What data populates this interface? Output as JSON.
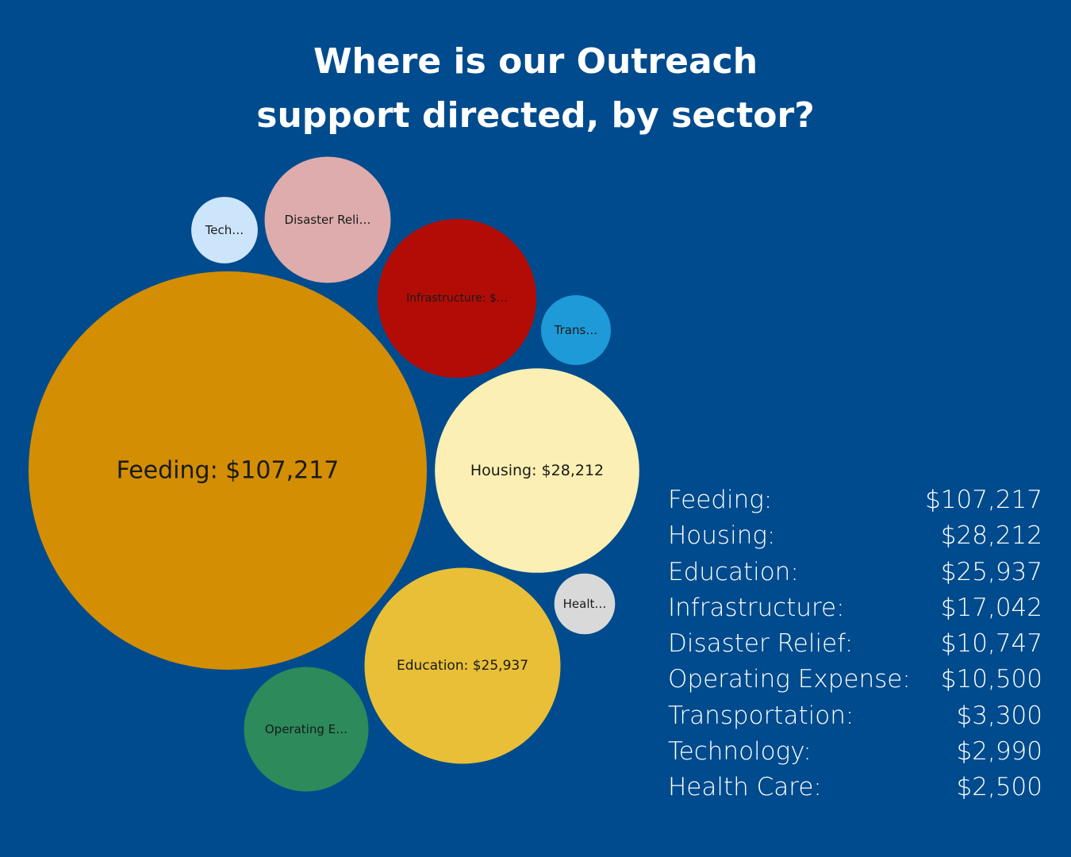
{
  "title": {
    "line1": "Where is our Outreach",
    "line2": "support directed, by sector?"
  },
  "chart_data": {
    "type": "bubble",
    "title": "Where is our Outreach support directed, by sector?",
    "series": [
      {
        "name": "Feeding",
        "value": 107217,
        "display": "$107,217",
        "label": "Feeding: $107,217",
        "color": "#d38e03"
      },
      {
        "name": "Housing",
        "value": 28212,
        "display": "$28,212",
        "label": "Housing: $28,212",
        "color": "#fbefb3"
      },
      {
        "name": "Education",
        "value": 25937,
        "display": "$25,937",
        "label": "Education: $25,937",
        "color": "#e8bf37"
      },
      {
        "name": "Infrastructure",
        "value": 17042,
        "display": "$17,042",
        "label": "Infrastructure: $…",
        "color": "#b30c06"
      },
      {
        "name": "Disaster Relief",
        "value": 10747,
        "display": "$10,747",
        "label": "Disaster Reli…",
        "color": "#deacac"
      },
      {
        "name": "Operating Expense",
        "value": 10500,
        "display": "$10,500",
        "label": "Operating E…",
        "color": "#2c8a5b"
      },
      {
        "name": "Transportation",
        "value": 3300,
        "display": "$3,300",
        "label": "Trans…",
        "color": "#1e9ad8"
      },
      {
        "name": "Technology",
        "value": 2990,
        "display": "$2,990",
        "label": "Tech…",
        "color": "#cde5fb"
      },
      {
        "name": "Health Care",
        "value": 2500,
        "display": "$2,500",
        "label": "Healt…",
        "color": "#d9d9d9"
      }
    ]
  }
}
